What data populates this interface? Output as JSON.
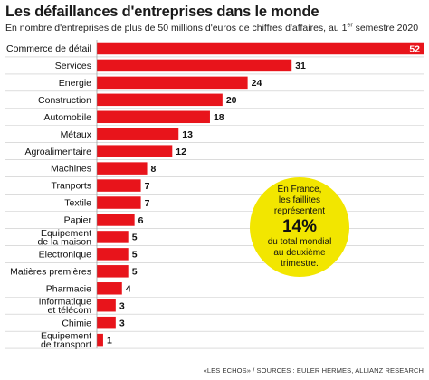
{
  "title": "Les défaillances d'entreprises dans le monde",
  "subtitle_main": "En nombre d'entreprises de plus de 50 millions d'euros de chiffres d'affaires, au 1",
  "subtitle_sup": "er",
  "subtitle_end": " semestre 2020",
  "callout": {
    "line1": "En France,",
    "line2": "les faillites",
    "line3": "représentent",
    "value": "14%",
    "line4": "du total mondial",
    "line5": "au deuxième",
    "line6": "trimestre."
  },
  "source": "«LES ECHOS» / SOURCES : EULER HERMES, ALLIANZ RESEARCH",
  "colors": {
    "bar": "#e8141b",
    "callout": "#f2e600",
    "grid": "#c8c8c8"
  },
  "chart_data": {
    "type": "bar",
    "orientation": "horizontal",
    "categories": [
      [
        "Commerce de détail"
      ],
      [
        "Services"
      ],
      [
        "Energie"
      ],
      [
        "Construction"
      ],
      [
        "Automobile"
      ],
      [
        "Métaux"
      ],
      [
        "Agroalimentaire"
      ],
      [
        "Machines"
      ],
      [
        "Tranports"
      ],
      [
        "Textile"
      ],
      [
        "Papier"
      ],
      [
        "Equipement",
        "de la maison"
      ],
      [
        "Electronique"
      ],
      [
        "Matières premières"
      ],
      [
        "Pharmacie"
      ],
      [
        "Informatique",
        "et télécom"
      ],
      [
        "Chimie"
      ],
      [
        "Equipement",
        "de transport"
      ]
    ],
    "values": [
      52,
      31,
      24,
      20,
      18,
      13,
      12,
      8,
      7,
      7,
      6,
      5,
      5,
      5,
      4,
      3,
      3,
      1
    ],
    "xlim": [
      0,
      52
    ]
  }
}
